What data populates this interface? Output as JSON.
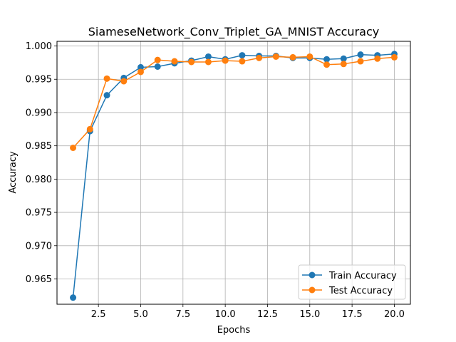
{
  "chart_data": {
    "type": "line",
    "title": "SiameseNetwork_Conv_Triplet_GA_MNIST Accuracy",
    "xlabel": "Epochs",
    "ylabel": "Accuracy",
    "x": [
      1,
      2,
      3,
      4,
      5,
      6,
      7,
      8,
      9,
      10,
      11,
      12,
      13,
      14,
      15,
      16,
      17,
      18,
      19,
      20
    ],
    "xlim": [
      0.05,
      20.95
    ],
    "ylim": [
      0.9612,
      1.0007
    ],
    "xticks": [
      2.5,
      5.0,
      7.5,
      10.0,
      12.5,
      15.0,
      17.5,
      20.0
    ],
    "xtick_labels": [
      "2.5",
      "5.0",
      "7.5",
      "10.0",
      "12.5",
      "15.0",
      "17.5",
      "20.0"
    ],
    "yticks": [
      0.965,
      0.97,
      0.975,
      0.98,
      0.985,
      0.99,
      0.995,
      1.0
    ],
    "ytick_labels": [
      "0.965",
      "0.970",
      "0.975",
      "0.980",
      "0.985",
      "0.990",
      "0.995",
      "1.000"
    ],
    "grid": true,
    "legend_position": "lower right",
    "series": [
      {
        "name": "Train Accuracy",
        "color": "#1f77b4",
        "values": [
          0.9622,
          0.9872,
          0.9926,
          0.9952,
          0.9968,
          0.9969,
          0.9974,
          0.9978,
          0.9984,
          0.998,
          0.9986,
          0.9985,
          0.9985,
          0.9982,
          0.9982,
          0.998,
          0.9981,
          0.9987,
          0.9986,
          0.9988
        ]
      },
      {
        "name": "Test Accuracy",
        "color": "#ff7f0e",
        "values": [
          0.9847,
          0.9875,
          0.9951,
          0.9947,
          0.9961,
          0.9979,
          0.9977,
          0.9976,
          0.9976,
          0.9978,
          0.9977,
          0.9982,
          0.9984,
          0.9983,
          0.9984,
          0.9972,
          0.9973,
          0.9977,
          0.9981,
          0.9983
        ]
      }
    ]
  }
}
